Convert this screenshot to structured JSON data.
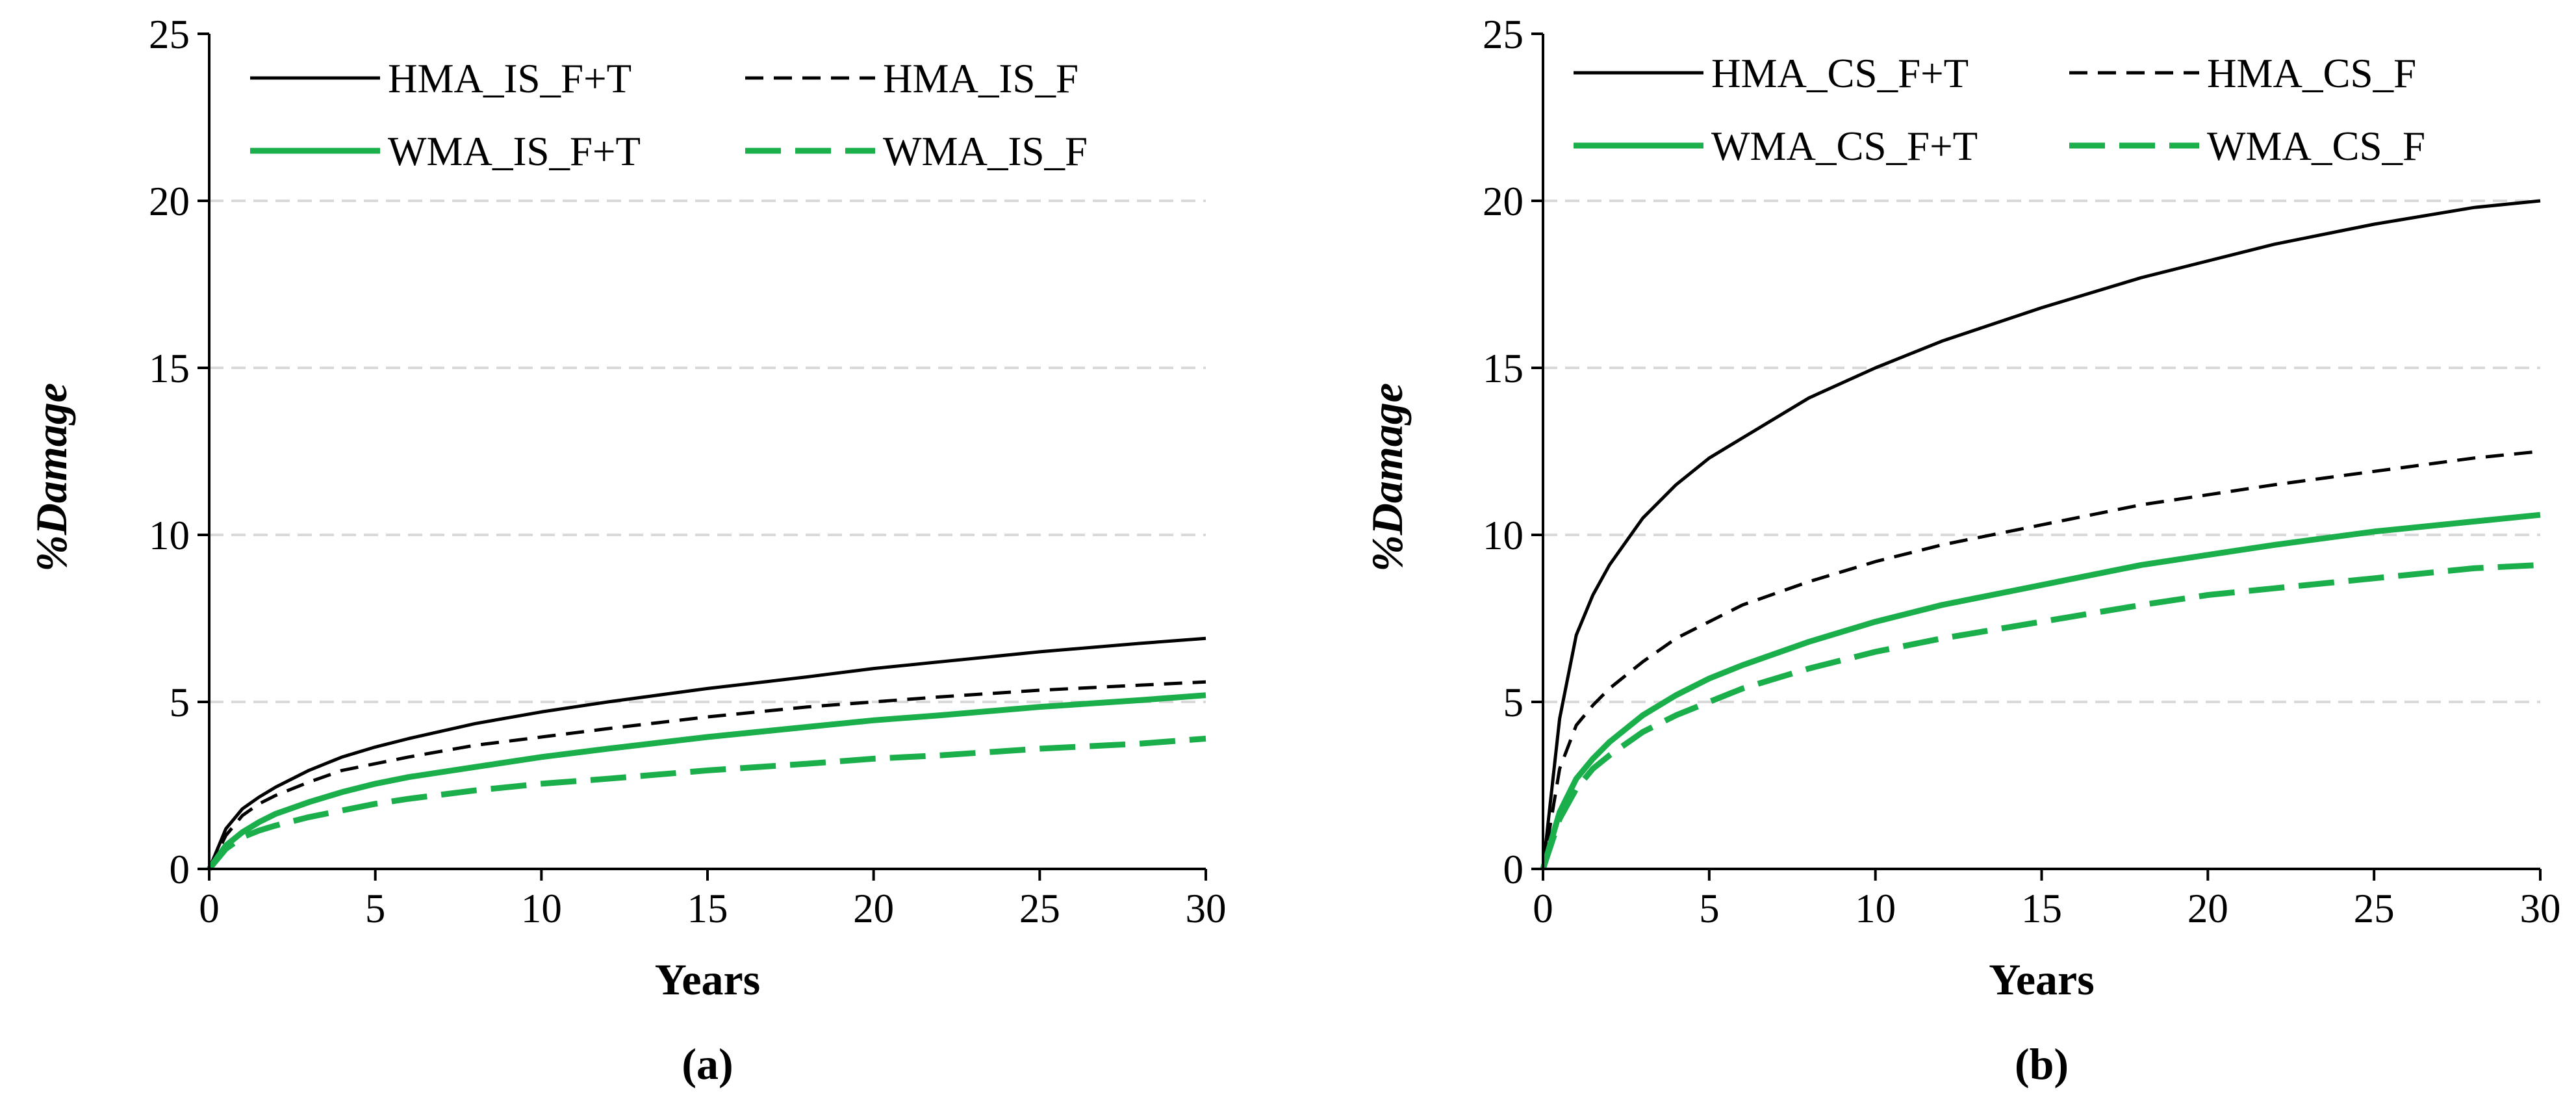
{
  "colors": {
    "hma": "#000000",
    "wma": "#1aaf4b",
    "grid": "#d9d9d9",
    "axis": "#000000"
  },
  "chart_data": [
    {
      "type": "line",
      "caption": "(a)",
      "xlabel": "Years",
      "ylabel": "%Damage",
      "xlim": [
        0,
        30
      ],
      "ylim": [
        0,
        25
      ],
      "xticks": [
        0,
        5,
        10,
        15,
        20,
        25,
        30
      ],
      "yticks": [
        0,
        5,
        10,
        15,
        20,
        25
      ],
      "grid": "horizontal dashed",
      "legend_position": "top, inside, 2 columns",
      "x": [
        0,
        0.5,
        1,
        1.5,
        2,
        3,
        4,
        5,
        6,
        8,
        10,
        12,
        15,
        18,
        20,
        22,
        25,
        28,
        30
      ],
      "series": [
        {
          "name": "HMA_IS_F+T",
          "color": "#000000",
          "dash": "solid",
          "values": [
            0,
            1.2,
            1.8,
            2.15,
            2.45,
            2.95,
            3.35,
            3.65,
            3.9,
            4.35,
            4.7,
            5.0,
            5.4,
            5.75,
            6.0,
            6.2,
            6.5,
            6.75,
            6.9
          ]
        },
        {
          "name": "HMA_IS_F",
          "color": "#000000",
          "dash": "dashed",
          "values": [
            0,
            1.0,
            1.6,
            1.95,
            2.2,
            2.6,
            2.95,
            3.15,
            3.35,
            3.7,
            3.95,
            4.2,
            4.55,
            4.85,
            5.0,
            5.15,
            5.35,
            5.5,
            5.6
          ]
        },
        {
          "name": "WMA_IS_F+T",
          "color": "#1aaf4b",
          "dash": "solid",
          "values": [
            0,
            0.7,
            1.1,
            1.4,
            1.65,
            2.0,
            2.3,
            2.55,
            2.75,
            3.05,
            3.35,
            3.6,
            3.95,
            4.25,
            4.45,
            4.6,
            4.85,
            5.05,
            5.2
          ]
        },
        {
          "name": "WMA_IS_F",
          "color": "#1aaf4b",
          "dash": "dashed",
          "values": [
            0,
            0.6,
            0.95,
            1.15,
            1.3,
            1.55,
            1.75,
            1.95,
            2.1,
            2.35,
            2.55,
            2.7,
            2.95,
            3.15,
            3.3,
            3.4,
            3.6,
            3.75,
            3.9
          ]
        }
      ]
    },
    {
      "type": "line",
      "caption": "(b)",
      "xlabel": "Years",
      "ylabel": "%Damage",
      "xlim": [
        0,
        30
      ],
      "ylim": [
        0,
        25
      ],
      "xticks": [
        0,
        5,
        10,
        15,
        20,
        25,
        30
      ],
      "yticks": [
        0,
        5,
        10,
        15,
        20,
        25
      ],
      "grid": "horizontal dashed",
      "legend_position": "top, inside, 2 columns",
      "x": [
        0,
        0.5,
        1,
        1.5,
        2,
        3,
        4,
        5,
        6,
        8,
        10,
        12,
        15,
        18,
        20,
        22,
        25,
        28,
        30
      ],
      "series": [
        {
          "name": "HMA_CS_F+T",
          "color": "#000000",
          "dash": "solid",
          "values": [
            0,
            4.5,
            7.0,
            8.2,
            9.1,
            10.5,
            11.5,
            12.3,
            12.9,
            14.1,
            15.0,
            15.8,
            16.8,
            17.7,
            18.2,
            18.7,
            19.3,
            19.8,
            20.0
          ]
        },
        {
          "name": "HMA_CS_F",
          "color": "#000000",
          "dash": "dashed",
          "values": [
            0,
            3.0,
            4.3,
            4.9,
            5.4,
            6.2,
            6.9,
            7.4,
            7.9,
            8.6,
            9.2,
            9.7,
            10.3,
            10.9,
            11.2,
            11.5,
            11.9,
            12.3,
            12.5
          ]
        },
        {
          "name": "WMA_CS_F+T",
          "color": "#1aaf4b",
          "dash": "solid",
          "values": [
            0,
            1.7,
            2.7,
            3.3,
            3.8,
            4.6,
            5.2,
            5.7,
            6.1,
            6.8,
            7.4,
            7.9,
            8.5,
            9.1,
            9.4,
            9.7,
            10.1,
            10.4,
            10.6
          ]
        },
        {
          "name": "WMA_CS_F",
          "color": "#1aaf4b",
          "dash": "dashed",
          "values": [
            0,
            1.5,
            2.4,
            3.0,
            3.4,
            4.1,
            4.6,
            5.0,
            5.4,
            6.0,
            6.5,
            6.9,
            7.4,
            7.9,
            8.2,
            8.4,
            8.7,
            9.0,
            9.1
          ]
        }
      ]
    }
  ]
}
